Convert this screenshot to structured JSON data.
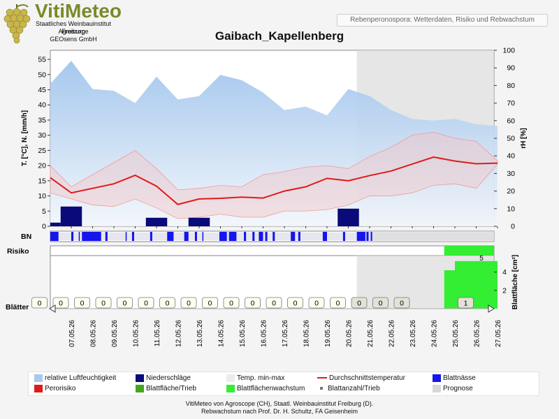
{
  "header": {
    "logo_text": "VitiMeteo",
    "institution_lines": [
      "Staatliches Weinbauinstitut Freiburg",
      "Agroscope",
      "GEOsens GmbH"
    ],
    "subtitle": "Rebenperonospora: Wetterdaten, Risiko und Rebwachstum"
  },
  "chart_data": {
    "type": "area",
    "title": "Gaibach_Kapellenberg",
    "dates": [
      "07.05.26",
      "08.05.26",
      "09.05.26",
      "10.05.26",
      "11.05.26",
      "12.05.26",
      "13.05.26",
      "14.05.26",
      "15.05.26",
      "16.05.26",
      "17.05.26",
      "18.05.26",
      "19.05.26",
      "20.05.26",
      "21.05.26",
      "22.05.26",
      "23.05.26",
      "24.05.26",
      "25.05.26",
      "26.05.26",
      "27.05.26"
    ],
    "prognosis_start": "20.05.26",
    "left_axis": {
      "label": "T. [°C], N. [mm/h]",
      "ticks": [
        0,
        5,
        10,
        15,
        20,
        25,
        30,
        35,
        40,
        45,
        50,
        55
      ],
      "range": [
        0,
        58
      ]
    },
    "right_axis": {
      "label": "rH [%]",
      "ticks": [
        0,
        10,
        20,
        30,
        40,
        50,
        60,
        70,
        80,
        90,
        100
      ],
      "range": [
        0,
        100
      ]
    },
    "humidity_x": [
      -1,
      0,
      1,
      2,
      3,
      4,
      5,
      6,
      7,
      8,
      9,
      10,
      11,
      12,
      13,
      14,
      15,
      16,
      17,
      18,
      19,
      20
    ],
    "humidity": [
      81,
      94,
      78,
      77,
      70,
      85,
      72,
      74,
      86,
      83,
      76,
      66,
      68,
      63,
      78,
      74,
      66,
      61,
      60,
      61,
      58,
      57
    ],
    "temp_avg_x": [
      -1,
      0,
      1,
      2,
      3,
      4,
      5,
      6,
      7,
      8,
      9,
      10,
      11,
      12,
      13,
      14,
      15,
      16,
      17,
      18,
      19,
      20
    ],
    "temp_avg": [
      16,
      11,
      12.5,
      14,
      16.8,
      13.2,
      7.2,
      9,
      9.2,
      9.6,
      9.3,
      11.6,
      13,
      15.8,
      15,
      16.7,
      18.2,
      20.5,
      22.8,
      21.5,
      20.6,
      20.8
    ],
    "temp_min": [
      11,
      9,
      7,
      6.5,
      9,
      6,
      2.5,
      3,
      4,
      3,
      3,
      5,
      5,
      5.5,
      7,
      10,
      10,
      11,
      13.5,
      14,
      12.5,
      20.5
    ],
    "temp_max": [
      20,
      13,
      17,
      21,
      25,
      19,
      12,
      12.5,
      13.5,
      13,
      17,
      18,
      19.5,
      20,
      19,
      23,
      26,
      30,
      31,
      29,
      28,
      21.5
    ],
    "precipitation": [
      {
        "from": -1,
        "to": -0.5,
        "value": 1.2
      },
      {
        "from": -0.5,
        "to": 0.5,
        "value": 6.5
      },
      {
        "from": 3.5,
        "to": 4.5,
        "value": 2.8
      },
      {
        "from": 5.5,
        "to": 6.5,
        "value": 2.8
      },
      {
        "from": 12.5,
        "to": 13.5,
        "value": 5.8
      }
    ],
    "leaf_wetness": [
      [
        -1,
        -0.6
      ],
      [
        0,
        0.1
      ],
      [
        0.35,
        0.4
      ],
      [
        0.5,
        1.4
      ],
      [
        1.6,
        1.7
      ],
      [
        2.55,
        2.6
      ],
      [
        2.85,
        2.95
      ],
      [
        3.7,
        3.8
      ],
      [
        4.5,
        4.8
      ],
      [
        5.3,
        5.5
      ],
      [
        5.8,
        5.9
      ],
      [
        6.15,
        6.2
      ],
      [
        6.95,
        7.3
      ],
      [
        7.4,
        7.75
      ],
      [
        8.1,
        8.2
      ],
      [
        8.5,
        8.6
      ],
      [
        8.8,
        9.0
      ],
      [
        9.1,
        9.2
      ],
      [
        9.45,
        9.55
      ],
      [
        10.3,
        10.5
      ],
      [
        10.65,
        10.75
      ],
      [
        11.8,
        12.0
      ],
      [
        12.75,
        12.85
      ],
      [
        13.4,
        13.8
      ],
      [
        13.85,
        13.95
      ],
      [
        14.05,
        14.12
      ]
    ],
    "labels": {
      "bn": "BN",
      "risk": "Risiko",
      "leaves": "Blätter",
      "leaf_area": "Blattfläche [cm²]"
    },
    "risk_value": "5",
    "leaf_area_ticks": [
      2,
      4
    ],
    "leaf_area_growth": [
      {
        "from": 17.5,
        "to": 18,
        "value": 4.2
      },
      {
        "from": 18,
        "to": 20,
        "value": 5.2
      }
    ],
    "leaf_counts": [
      0,
      0,
      0,
      0,
      0,
      0,
      0,
      0,
      0,
      0,
      0,
      0,
      0,
      0,
      0,
      0,
      0,
      0,
      1
    ],
    "leaf_count_positions": [
      -1,
      0,
      1,
      2,
      3,
      4,
      5,
      6,
      7,
      8,
      9,
      10,
      11,
      12,
      13,
      14,
      15,
      16,
      19
    ]
  },
  "legend": [
    {
      "label": "relative Luftfeuchtigkeit",
      "color": "#a9c9ee"
    },
    {
      "label": "Niederschläge",
      "color": "#0a0a7a"
    },
    {
      "label": "Temp. min-max",
      "color": "#ececec"
    },
    {
      "label": "Durchschnittstemperatur",
      "color": "#e11919"
    },
    {
      "label": "Blattnässe",
      "color": "#1515ee"
    },
    {
      "label": "Perorisiko",
      "color": "#e11919"
    },
    {
      "label": "Blattfläche/Trieb",
      "color": "#44a81a"
    },
    {
      "label": "Blattflächenwachstum",
      "color": "#33ee33"
    },
    {
      "label": "Blattanzahl/Trieb",
      "color": "#777777"
    },
    {
      "label": "Prognose",
      "color": "#d8d8d8"
    }
  ],
  "footer": {
    "line1": "VitiMeteo von Agroscope (CH), Staatl. Weinbauinstitut Freiburg (D).",
    "line2": "Rebwachstum nach Prof. Dr. H. Schultz, FA Geisenheim"
  }
}
